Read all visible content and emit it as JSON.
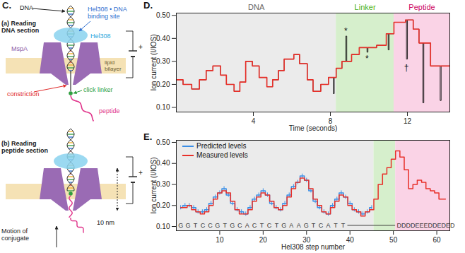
{
  "chart_data": [
    {
      "type": "line",
      "title": "D.",
      "xlabel": "Time (seconds)",
      "ylabel": "Ion current (I/IOS)",
      "xlim": [
        0,
        14.2
      ],
      "xticks": [
        4,
        8,
        12
      ],
      "ylim": [
        0.08,
        0.51
      ],
      "yticks": [
        0.1,
        0.2,
        0.3,
        0.4,
        0.5
      ],
      "grid": false,
      "regions": [
        {
          "label": "DNA",
          "from": 0,
          "to": 8.3,
          "color": "#ebebeb"
        },
        {
          "label": "Linker",
          "from": 8.3,
          "to": 11.3,
          "color": "#d6efcc"
        },
        {
          "label": "Peptide",
          "from": 11.3,
          "to": 14.2,
          "color": "#fad3e6"
        }
      ],
      "series": [
        {
          "color": "#111111",
          "line_style": "step-after",
          "x": [
            0,
            0.35,
            0.8,
            1.2,
            1.55,
            1.9,
            2.3,
            2.6,
            3.0,
            3.3,
            3.6,
            3.95,
            4.3,
            4.7,
            5.0,
            5.3,
            5.6,
            6.1,
            6.4,
            6.8,
            7.1,
            7.5,
            7.9,
            8.15,
            8.2,
            8.3,
            8.6,
            8.8,
            8.85,
            9.1,
            9.5,
            9.9,
            9.95,
            10.4,
            10.9,
            11.0,
            11.05,
            11.3,
            11.9,
            11.95,
            12.0,
            12.3,
            12.6,
            12.8,
            12.85,
            13.2,
            13.7,
            13.75,
            14.2
          ],
          "values": [
            0.22,
            0.2,
            0.18,
            0.22,
            0.26,
            0.28,
            0.24,
            0.2,
            0.17,
            0.21,
            0.3,
            0.28,
            0.23,
            0.19,
            0.22,
            0.26,
            0.31,
            0.33,
            0.29,
            0.22,
            0.17,
            0.2,
            0.23,
            0.16,
            0.23,
            0.27,
            0.3,
            0.41,
            0.3,
            0.33,
            0.36,
            0.34,
            0.36,
            0.37,
            0.42,
            0.35,
            0.42,
            0.47,
            0.48,
            0.31,
            0.48,
            0.44,
            0.38,
            0.12,
            0.38,
            0.28,
            0.13,
            0.28,
            0.28
          ]
        },
        {
          "color": "#e8302a",
          "line_style": "step-after",
          "x": [
            0,
            0.35,
            0.8,
            1.2,
            1.55,
            1.9,
            2.3,
            2.6,
            3.0,
            3.3,
            3.6,
            3.95,
            4.3,
            4.7,
            5.0,
            5.3,
            5.6,
            6.1,
            6.4,
            6.8,
            7.1,
            7.5,
            7.9,
            8.3,
            8.6,
            9.1,
            9.5,
            10.4,
            10.9,
            11.3,
            11.9,
            12.3,
            12.6,
            13.2,
            14.2
          ],
          "values": [
            0.22,
            0.2,
            0.18,
            0.22,
            0.26,
            0.28,
            0.24,
            0.2,
            0.17,
            0.21,
            0.3,
            0.28,
            0.23,
            0.19,
            0.22,
            0.26,
            0.31,
            0.33,
            0.29,
            0.22,
            0.17,
            0.2,
            0.23,
            0.27,
            0.3,
            0.33,
            0.36,
            0.37,
            0.42,
            0.47,
            0.48,
            0.44,
            0.38,
            0.28,
            0.28
          ]
        }
      ],
      "annotations": [
        {
          "text": "*",
          "x": 8.8,
          "y": 0.43
        },
        {
          "text": "*",
          "x": 9.9,
          "y": 0.31
        },
        {
          "text": "†",
          "x": 11.95,
          "y": 0.27
        }
      ]
    },
    {
      "type": "line",
      "title": "E.",
      "xlabel": "Hel308 step number",
      "ylabel": "Ion current (I/IOS)",
      "xlim": [
        0,
        63
      ],
      "xticks": [
        10,
        20,
        30,
        40,
        50,
        60
      ],
      "ylim": [
        0.08,
        0.51
      ],
      "yticks": [
        0.1,
        0.2,
        0.3,
        0.4,
        0.5
      ],
      "grid": false,
      "legend": "top-left",
      "regions": [
        {
          "from": 0,
          "to": 45.5,
          "color": "#ebebeb"
        },
        {
          "from": 45.5,
          "to": 50.5,
          "color": "#d6efcc"
        },
        {
          "from": 50.5,
          "to": 63,
          "color": "#fad3e6"
        }
      ],
      "sequence": "GGTCCGTGCACTCTGAAGTCATT",
      "peptide_sequence": "DDDDEEEDDEDED",
      "series": [
        {
          "name": "Predicted levels",
          "color": "#3a8ee6",
          "line_style": "step",
          "x": [
            1,
            2,
            3,
            4,
            5,
            6,
            7,
            8,
            9,
            10,
            11,
            12,
            13,
            14,
            15,
            16,
            17,
            18,
            19,
            20,
            21,
            22,
            23,
            24,
            25,
            26,
            27,
            28,
            29,
            30,
            31,
            32,
            33,
            34,
            35,
            36,
            37,
            38,
            39,
            40,
            41,
            42,
            43,
            44,
            45
          ],
          "values": [
            0.19,
            0.2,
            0.2,
            0.19,
            0.17,
            0.17,
            0.18,
            0.21,
            0.24,
            0.26,
            0.28,
            0.25,
            0.21,
            0.18,
            0.17,
            0.16,
            0.19,
            0.23,
            0.25,
            0.27,
            0.25,
            0.21,
            0.19,
            0.18,
            0.21,
            0.25,
            0.29,
            0.31,
            0.34,
            0.32,
            0.27,
            0.22,
            0.19,
            0.17,
            0.16,
            0.2,
            0.23,
            0.26,
            0.24,
            0.21,
            0.18,
            0.17,
            0.16,
            0.17,
            0.19
          ],
          "errors": [
            0.01,
            0.01,
            0.01,
            0.01,
            0.01,
            0.01,
            0.01,
            0.01,
            0.01,
            0.01,
            0.01,
            0.01,
            0.01,
            0.01,
            0.01,
            0.01,
            0.01,
            0.01,
            0.01,
            0.01,
            0.01,
            0.01,
            0.01,
            0.01,
            0.01,
            0.01,
            0.01,
            0.01,
            0.01,
            0.01,
            0.01,
            0.01,
            0.01,
            0.01,
            0.01,
            0.01,
            0.01,
            0.01,
            0.01,
            0.01,
            0.01,
            0.01,
            0.01,
            0.01,
            0.01
          ]
        },
        {
          "name": "Measured levels",
          "color": "#e8302a",
          "line_style": "step",
          "x": [
            1,
            2,
            3,
            4,
            5,
            6,
            7,
            8,
            9,
            10,
            11,
            12,
            13,
            14,
            15,
            16,
            17,
            18,
            19,
            20,
            21,
            22,
            23,
            24,
            25,
            26,
            27,
            28,
            29,
            30,
            31,
            32,
            33,
            34,
            35,
            36,
            37,
            38,
            39,
            40,
            41,
            42,
            43,
            44,
            45,
            46,
            47,
            48,
            49,
            50,
            51,
            52,
            53,
            54,
            55,
            56,
            57,
            58,
            59,
            60,
            61,
            62
          ],
          "values": [
            0.19,
            0.19,
            0.2,
            0.18,
            0.17,
            0.16,
            0.17,
            0.2,
            0.23,
            0.26,
            0.27,
            0.26,
            0.22,
            0.18,
            0.16,
            0.16,
            0.18,
            0.22,
            0.24,
            0.26,
            0.25,
            0.22,
            0.19,
            0.18,
            0.2,
            0.24,
            0.28,
            0.31,
            0.33,
            0.32,
            0.28,
            0.23,
            0.2,
            0.17,
            0.16,
            0.19,
            0.22,
            0.25,
            0.24,
            0.2,
            0.18,
            0.17,
            0.15,
            0.17,
            0.18,
            0.23,
            0.3,
            0.35,
            0.38,
            0.42,
            0.46,
            0.43,
            0.37,
            0.28,
            0.3,
            0.32,
            0.31,
            0.28,
            0.27,
            0.26,
            0.23,
            0.23
          ]
        }
      ]
    }
  ],
  "diagram": {
    "panel": "C.",
    "labels": {
      "dna": "DNA",
      "binding_site": [
        "Hel308 • DNA",
        "binding site"
      ],
      "helicase": "Hel308",
      "pore": "MspA",
      "bilayer": [
        "lipid",
        "bilayer"
      ],
      "constriction": "constriction",
      "linker": "click linker",
      "peptide": "peptide",
      "voltage": "+",
      "distance": "10 nm",
      "motion": [
        "Motion of",
        "conjugate"
      ]
    },
    "sections": [
      {
        "heading": [
          "(a) Reading",
          "DNA section"
        ]
      },
      {
        "heading": [
          "(b) Reading",
          "peptide section"
        ]
      }
    ]
  }
}
